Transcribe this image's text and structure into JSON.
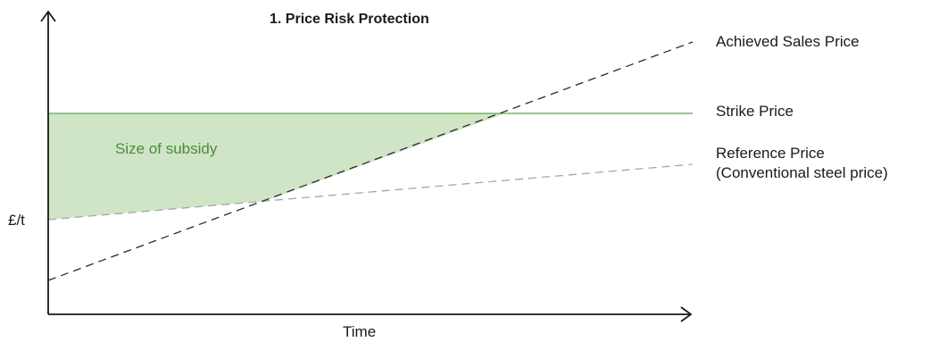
{
  "title": "1.  Price Risk Protection",
  "y_axis_label": "£/t",
  "x_axis_label": "Time",
  "labels": {
    "achieved": "Achieved Sales Price",
    "strike": "Strike Price",
    "reference_line1": "Reference Price",
    "reference_line2": "(Conventional steel price)",
    "subsidy": "Size of subsidy"
  },
  "colors": {
    "axis": "#1a1a1a",
    "strike": "#7ab56a",
    "subsidy_fill": "#cfe5c6",
    "subsidy_text": "#4e8a3e",
    "achieved": "#2b2b2b",
    "reference": "#a6a6a6"
  }
}
